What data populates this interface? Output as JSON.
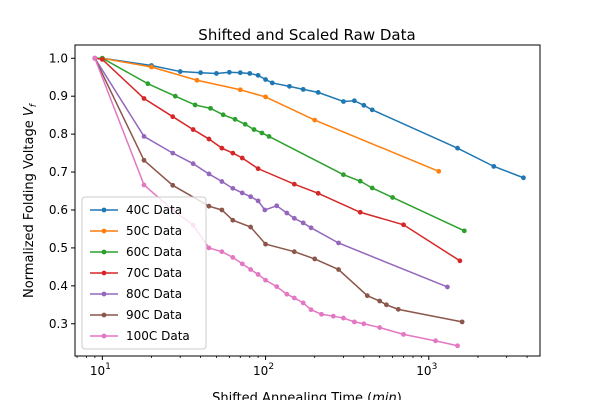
{
  "chart_data": {
    "type": "line",
    "title": "Shifted and Scaled Raw Data",
    "xlabel": "Shifted Annealing Time (min)",
    "ylabel": "Normalized Folding Voltage V_f",
    "xscale": "log",
    "xlim": [
      6.8,
      4800
    ],
    "ylim": [
      0.215,
      1.035
    ],
    "x_ticks": [
      {
        "value": 10,
        "label": "10",
        "sup": "1"
      },
      {
        "value": 100,
        "label": "10",
        "sup": "2"
      },
      {
        "value": 1000,
        "label": "10",
        "sup": "3"
      }
    ],
    "y_ticks": [
      {
        "value": 0.3,
        "label": "0.3"
      },
      {
        "value": 0.4,
        "label": "0.4"
      },
      {
        "value": 0.5,
        "label": "0.5"
      },
      {
        "value": 0.6,
        "label": "0.6"
      },
      {
        "value": 0.7,
        "label": "0.7"
      },
      {
        "value": 0.8,
        "label": "0.8"
      },
      {
        "value": 0.9,
        "label": "0.9"
      },
      {
        "value": 1.0,
        "label": "1.0"
      }
    ],
    "grid": false,
    "legend_position": "lower-left",
    "series": [
      {
        "name": "40C Data",
        "color": "#1f77b4",
        "x": [
          9,
          10,
          20,
          30,
          40,
          50,
          60,
          70,
          80,
          90,
          100,
          110,
          140,
          170,
          210,
          300,
          350,
          400,
          450,
          1500,
          2500,
          3800
        ],
        "y": [
          1.0,
          1.0,
          0.981,
          0.965,
          0.962,
          0.96,
          0.963,
          0.962,
          0.96,
          0.955,
          0.944,
          0.935,
          0.926,
          0.918,
          0.91,
          0.886,
          0.888,
          0.876,
          0.864,
          0.763,
          0.715,
          0.685
        ]
      },
      {
        "name": "50C Data",
        "color": "#ff7f0e",
        "x": [
          9,
          10,
          20,
          38,
          70,
          100,
          200,
          1150
        ],
        "y": [
          1.0,
          1.0,
          0.977,
          0.942,
          0.917,
          0.898,
          0.837,
          0.702
        ]
      },
      {
        "name": "60C Data",
        "color": "#2ca02c",
        "x": [
          9,
          10,
          19,
          28,
          37,
          46,
          55,
          65,
          75,
          85,
          95,
          105,
          300,
          380,
          450,
          600,
          1650
        ],
        "y": [
          1.0,
          1.0,
          0.933,
          0.9,
          0.877,
          0.868,
          0.851,
          0.839,
          0.826,
          0.812,
          0.803,
          0.794,
          0.693,
          0.676,
          0.658,
          0.633,
          0.545
        ]
      },
      {
        "name": "70C Data",
        "color": "#d62728",
        "x": [
          9,
          10,
          18,
          27,
          36,
          45,
          54,
          63,
          72,
          90,
          150,
          210,
          380,
          700,
          1550
        ],
        "y": [
          1.0,
          0.997,
          0.894,
          0.846,
          0.812,
          0.787,
          0.763,
          0.75,
          0.737,
          0.709,
          0.668,
          0.644,
          0.594,
          0.561,
          0.466
        ]
      },
      {
        "name": "80C Data",
        "color": "#9467bd",
        "x": [
          9,
          18,
          27,
          36,
          45,
          54,
          63,
          72,
          81,
          90,
          99,
          117,
          135,
          150,
          170,
          190,
          280,
          1300
        ],
        "y": [
          1.0,
          0.794,
          0.75,
          0.722,
          0.695,
          0.675,
          0.657,
          0.645,
          0.635,
          0.624,
          0.6,
          0.611,
          0.592,
          0.578,
          0.566,
          0.553,
          0.513,
          0.397
        ]
      },
      {
        "name": "90C Data",
        "color": "#8c564b",
        "x": [
          9,
          18,
          27,
          45,
          54,
          63,
          81,
          100,
          150,
          200,
          280,
          420,
          500,
          550,
          650,
          1600
        ],
        "y": [
          1.0,
          0.731,
          0.665,
          0.61,
          0.6,
          0.573,
          0.555,
          0.51,
          0.49,
          0.471,
          0.443,
          0.374,
          0.36,
          0.35,
          0.338,
          0.305
        ]
      },
      {
        "name": "100C Data",
        "color": "#e377c2",
        "x": [
          9,
          18,
          27,
          36,
          45,
          54,
          63,
          72,
          81,
          90,
          100,
          117,
          135,
          150,
          170,
          190,
          220,
          260,
          300,
          350,
          400,
          500,
          700,
          1100,
          1500
        ],
        "y": [
          1.0,
          0.666,
          0.6,
          0.56,
          0.5,
          0.49,
          0.475,
          0.458,
          0.443,
          0.43,
          0.415,
          0.398,
          0.378,
          0.368,
          0.355,
          0.337,
          0.325,
          0.32,
          0.315,
          0.305,
          0.3,
          0.29,
          0.272,
          0.255,
          0.242
        ]
      }
    ]
  }
}
